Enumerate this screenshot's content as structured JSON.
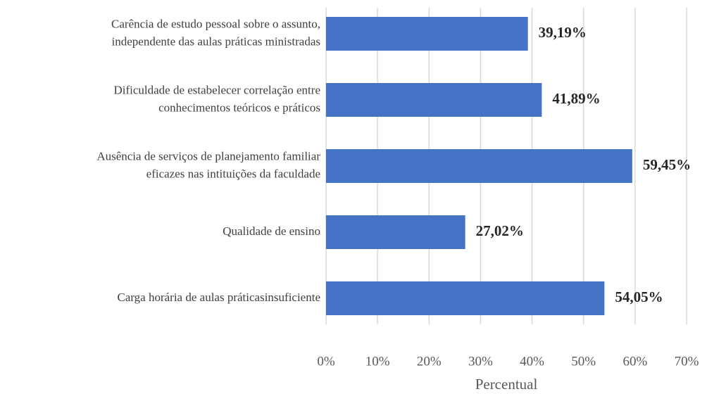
{
  "chart_data": {
    "type": "barh",
    "categories": [
      [
        "Carência de estudo pessoal sobre o assunto,",
        "independente das aulas práticas ministradas"
      ],
      [
        "Dificuldade de estabelecer correlação entre",
        "conhecimentos teóricos e práticos"
      ],
      [
        "Ausência de serviços de planejamento familiar",
        "eficazes nas intituições da faculdade"
      ],
      [
        "Qualidade de ensino"
      ],
      [
        "Carga horária de aulas práticasinsuficiente"
      ]
    ],
    "values": [
      39.19,
      41.89,
      59.45,
      27.02,
      54.05
    ],
    "value_labels": [
      "39,19%",
      "41,89%",
      "59,45%",
      "27,02%",
      "54,05%"
    ],
    "color": "#4472c4",
    "xlim": [
      0,
      70
    ],
    "xticks": [
      {
        "value": 0,
        "label": "0%"
      },
      {
        "value": 10,
        "label": "10%"
      },
      {
        "value": 20,
        "label": "20%"
      },
      {
        "value": 30,
        "label": "30%"
      },
      {
        "value": 40,
        "label": "40%"
      },
      {
        "value": 50,
        "label": "50%"
      },
      {
        "value": 60,
        "label": "60%"
      },
      {
        "value": 70,
        "label": "70%"
      }
    ],
    "xlabel": "Percentual",
    "grid": true
  }
}
